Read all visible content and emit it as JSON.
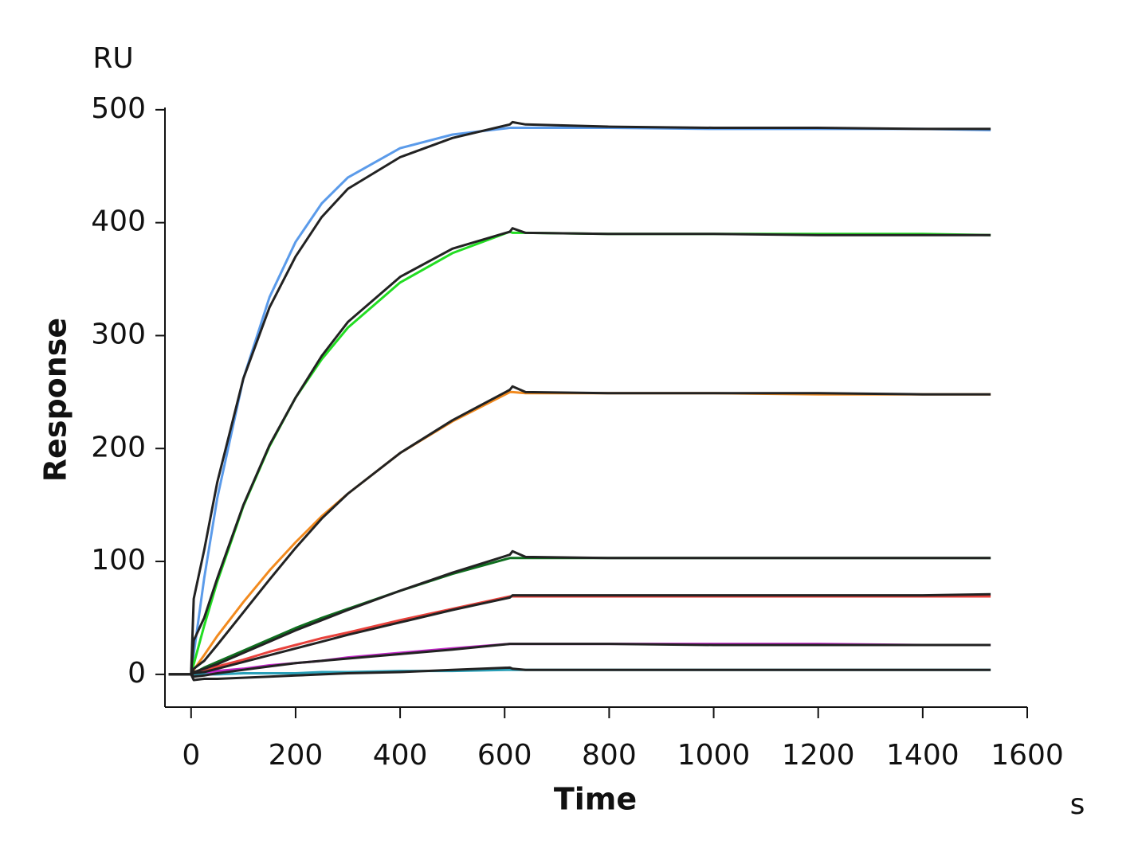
{
  "chart_data": {
    "type": "line",
    "y_unit": "RU",
    "y_label": "Response",
    "x_label": "Time",
    "x_unit": "s",
    "x": [
      -43,
      0,
      5,
      25,
      50,
      100,
      150,
      200,
      250,
      300,
      400,
      500,
      610,
      615,
      640,
      800,
      1000,
      1200,
      1400,
      1530
    ],
    "xlim": [
      -50,
      1600
    ],
    "xticks": [
      0,
      200,
      400,
      600,
      800,
      1000,
      1200,
      1400,
      1600
    ],
    "ylim": [
      -29,
      502
    ],
    "yticks": [
      0,
      100,
      200,
      300,
      400,
      500
    ],
    "series": [
      {
        "color": "#5b9bea",
        "values": [
          null,
          0,
          18,
          85,
          156,
          262,
          334,
          383,
          417,
          440,
          466,
          478,
          484,
          484,
          484,
          484,
          483,
          483,
          483,
          482
        ]
      },
      {
        "color": "#22dd22",
        "values": [
          null,
          0,
          9,
          43,
          82,
          149,
          202,
          245,
          279,
          307,
          347,
          373,
          392,
          391,
          391,
          390,
          390,
          390,
          390,
          389
        ]
      },
      {
        "color": "#f28a1e",
        "values": [
          null,
          0,
          4,
          17,
          34,
          64,
          92,
          117,
          140,
          160,
          196,
          224,
          250,
          250,
          249,
          249,
          249,
          248,
          248,
          248
        ]
      },
      {
        "color": "#0f6e1f",
        "values": [
          null,
          0,
          1,
          6,
          11,
          21,
          31,
          41,
          50,
          58,
          74,
          89,
          103,
          103,
          103,
          103,
          103,
          103,
          103,
          103
        ]
      },
      {
        "color": "#e8423c",
        "values": [
          null,
          0,
          1,
          3,
          7,
          13,
          20,
          26,
          32,
          37,
          48,
          58,
          69,
          69,
          69,
          69,
          69,
          69,
          69,
          69
        ]
      },
      {
        "color": "#c228c8",
        "values": [
          null,
          0,
          0,
          1,
          3,
          5,
          8,
          10,
          12,
          15,
          19,
          23,
          27,
          27,
          27,
          27,
          27,
          27,
          26,
          26
        ]
      },
      {
        "color": "#2aa0b8",
        "values": [
          null,
          0,
          0,
          0,
          0,
          1,
          1,
          1,
          2,
          2,
          3,
          3,
          4,
          4,
          4,
          4,
          4,
          4,
          4,
          4
        ]
      },
      {
        "color": "#222222",
        "values": [
          0,
          0,
          67,
          110,
          170,
          262,
          325,
          370,
          405,
          430,
          458,
          475,
          487,
          489,
          487,
          485,
          484,
          484,
          483,
          483
        ]
      },
      {
        "color": "#222222",
        "values": [
          0,
          0,
          30,
          50,
          85,
          150,
          203,
          245,
          282,
          312,
          352,
          377,
          392,
          395,
          391,
          390,
          390,
          389,
          389,
          389
        ]
      },
      {
        "color": "#222222",
        "values": [
          0,
          0,
          5,
          12,
          26,
          55,
          84,
          112,
          138,
          160,
          196,
          225,
          252,
          255,
          250,
          249,
          249,
          249,
          248,
          248
        ]
      },
      {
        "color": "#222222",
        "values": [
          0,
          0,
          2,
          5,
          9,
          19,
          29,
          39,
          48,
          57,
          74,
          90,
          106,
          109,
          104,
          103,
          103,
          103,
          103,
          103
        ]
      },
      {
        "color": "#222222",
        "values": [
          0,
          0,
          1,
          2,
          5,
          11,
          17,
          23,
          29,
          35,
          46,
          57,
          68,
          70,
          70,
          70,
          70,
          70,
          70,
          71
        ]
      },
      {
        "color": "#222222",
        "values": [
          0,
          0,
          -2,
          -1,
          1,
          4,
          7,
          10,
          12,
          14,
          18,
          22,
          27,
          27,
          27,
          27,
          26,
          26,
          26,
          26
        ]
      },
      {
        "color": "#222222",
        "values": [
          0,
          0,
          -5,
          -4,
          -4,
          -3,
          -2,
          -1,
          0,
          1,
          2,
          4,
          6,
          5,
          4,
          4,
          4,
          4,
          4,
          4
        ]
      }
    ]
  }
}
